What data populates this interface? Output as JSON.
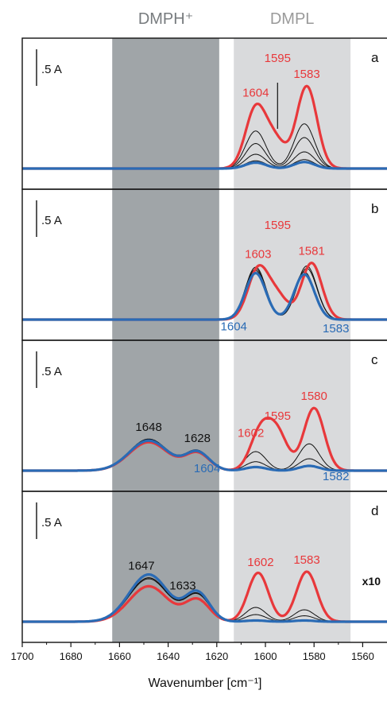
{
  "chart_data": {
    "type": "line",
    "xlabel": "Wavenumber [cm⁻¹]",
    "xlim": [
      1700,
      1550
    ],
    "xticks": [
      1700,
      1680,
      1660,
      1640,
      1620,
      1600,
      1580,
      1560
    ],
    "bands": [
      {
        "label": "DMPH⁺",
        "from": 1663,
        "to": 1619,
        "color": "#a0a5a8"
      },
      {
        "label": "DMPL",
        "from": 1613,
        "to": 1565,
        "color": "#d9dadc"
      }
    ],
    "colors": {
      "red": "#e8383b",
      "blue": "#2a6bb5",
      "black": "#111111"
    },
    "panels": [
      {
        "letter": "a",
        "scalebar": ".5 A",
        "labels": [
          {
            "text": "1604",
            "x": 1604,
            "color": "red"
          },
          {
            "text": "1595",
            "x": 1595,
            "color": "red"
          },
          {
            "text": "1583",
            "x": 1583,
            "color": "red"
          }
        ],
        "marker_line_x": 1595,
        "curves": [
          {
            "color": "black",
            "peaks": [
              [
                1604,
                0.13
              ],
              [
                1584,
                0.15
              ]
            ],
            "broad": 0.0
          },
          {
            "color": "black",
            "peaks": [
              [
                1604,
                0.24
              ],
              [
                1584,
                0.28
              ]
            ],
            "broad": 0.0
          },
          {
            "color": "black",
            "peaks": [
              [
                1604,
                0.42
              ],
              [
                1584,
                0.52
              ]
            ],
            "broad": 0.0
          },
          {
            "color": "black",
            "peaks": [
              [
                1604,
                0.63
              ],
              [
                1584,
                0.75
              ]
            ],
            "broad": 0.0
          },
          {
            "color": "red",
            "peaks": [
              [
                1604,
                1.0
              ],
              [
                1596,
                0.45
              ],
              [
                1583,
                1.38
              ]
            ],
            "broad": 0.0
          },
          {
            "color": "blue",
            "peaks": [
              [
                1604,
                0.1
              ],
              [
                1584,
                0.11
              ]
            ],
            "broad": 0.0
          }
        ]
      },
      {
        "letter": "b",
        "scalebar": ".5 A",
        "labels": [
          {
            "text": "1603",
            "x": 1603,
            "color": "red"
          },
          {
            "text": "1595",
            "x": 1595,
            "color": "red"
          },
          {
            "text": "1581",
            "x": 1581,
            "color": "red"
          },
          {
            "text": "1604",
            "x": 1613,
            "color": "blue"
          },
          {
            "text": "1583",
            "x": 1571,
            "color": "blue"
          }
        ],
        "curves": [
          {
            "color": "black",
            "peaks": [
              [
                1604,
                0.82
              ],
              [
                1584,
                0.8
              ]
            ],
            "broad": 0.0
          },
          {
            "color": "black",
            "peaks": [
              [
                1604,
                0.85
              ],
              [
                1583,
                0.86
              ]
            ],
            "broad": 0.0
          },
          {
            "color": "black",
            "peaks": [
              [
                1604,
                0.88
              ],
              [
                1583,
                0.9
              ]
            ],
            "broad": 0.0
          },
          {
            "color": "red",
            "peaks": [
              [
                1603,
                0.84
              ],
              [
                1595,
                0.38
              ],
              [
                1581,
                0.95
              ]
            ],
            "broad": 0.0
          },
          {
            "color": "blue",
            "peaks": [
              [
                1604,
                0.78
              ],
              [
                1584,
                0.76
              ]
            ],
            "broad": 0.0
          }
        ]
      },
      {
        "letter": "c",
        "scalebar": ".5 A",
        "labels": [
          {
            "text": "1648",
            "x": 1648,
            "color": "black"
          },
          {
            "text": "1628",
            "x": 1628,
            "color": "black"
          },
          {
            "text": "1604",
            "x": 1624,
            "color": "blue"
          },
          {
            "text": "1602",
            "x": 1606,
            "color": "red"
          },
          {
            "text": "1595",
            "x": 1595,
            "color": "red"
          },
          {
            "text": "1580",
            "x": 1580,
            "color": "red"
          },
          {
            "text": "1582",
            "x": 1571,
            "color": "blue"
          }
        ],
        "curves": [
          {
            "color": "black",
            "peaks": [
              [
                1604,
                0.15
              ],
              [
                1582,
                0.2
              ]
            ],
            "broad": 0.58
          },
          {
            "color": "black",
            "peaks": [
              [
                1604,
                0.32
              ],
              [
                1582,
                0.45
              ]
            ],
            "broad": 0.59
          },
          {
            "color": "red",
            "peaks": [
              [
                1602,
                0.65
              ],
              [
                1595,
                0.6
              ],
              [
                1580,
                1.05
              ]
            ],
            "broad": 0.53
          },
          {
            "color": "blue",
            "peaks": [
              [
                1604,
                0.06
              ],
              [
                1582,
                0.08
              ]
            ],
            "broad": 0.56
          }
        ]
      },
      {
        "letter": "d",
        "scalebar": ".5 A",
        "factor_label": "x10",
        "labels": [
          {
            "text": "1633",
            "x": 1634,
            "color": "black"
          },
          {
            "text": "1647",
            "x": 1651,
            "color": "black"
          },
          {
            "text": "1602",
            "x": 1602,
            "color": "red"
          },
          {
            "text": "1583",
            "x": 1583,
            "color": "red"
          }
        ],
        "curves": [
          {
            "color": "black",
            "peaks": [
              [
                1604,
                0.12
              ],
              [
                1584,
                0.1
              ]
            ],
            "broad": 0.8
          },
          {
            "color": "black",
            "peaks": [
              [
                1604,
                0.24
              ],
              [
                1584,
                0.2
              ]
            ],
            "broad": 0.82
          },
          {
            "color": "red",
            "peaks": [
              [
                1603,
                0.82
              ],
              [
                1583,
                0.84
              ]
            ],
            "broad": 0.66
          },
          {
            "color": "blue",
            "peaks": [
              [
                1604,
                0.02
              ],
              [
                1584,
                0.02
              ]
            ],
            "broad": 0.88
          }
        ]
      }
    ]
  }
}
